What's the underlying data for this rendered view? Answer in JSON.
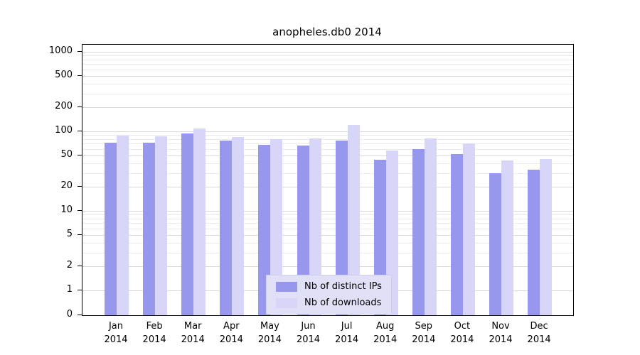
{
  "title": "anopheles.db0 2014",
  "chart_data": {
    "type": "bar",
    "title": "anopheles.db0 2014",
    "categories": [
      "Jan",
      "Feb",
      "Mar",
      "Apr",
      "May",
      "Jun",
      "Jul",
      "Aug",
      "Sep",
      "Oct",
      "Nov",
      "Dec"
    ],
    "year_label": "2014",
    "series": [
      {
        "name": "Nb of distinct IPs",
        "color": "#9897ee",
        "values": [
          72,
          72,
          95,
          76,
          68,
          66,
          76,
          44,
          60,
          52,
          30,
          33
        ]
      },
      {
        "name": "Nb of downloads",
        "color": "#d7d6f8",
        "values": [
          88,
          86,
          108,
          85,
          80,
          82,
          120,
          57,
          82,
          71,
          43,
          45
        ]
      }
    ],
    "yscale": "log",
    "yticks": [
      0,
      1,
      2,
      5,
      10,
      20,
      50,
      100,
      200,
      500,
      1000
    ],
    "ylim": [
      0,
      1000
    ],
    "grid": true,
    "legend_position": "bottom-center",
    "colors": {
      "grid_minor": "#ebebeb",
      "grid_major": "#d9d9d9",
      "legend_bg": "#e0e0f6",
      "axis": "#000000"
    }
  }
}
